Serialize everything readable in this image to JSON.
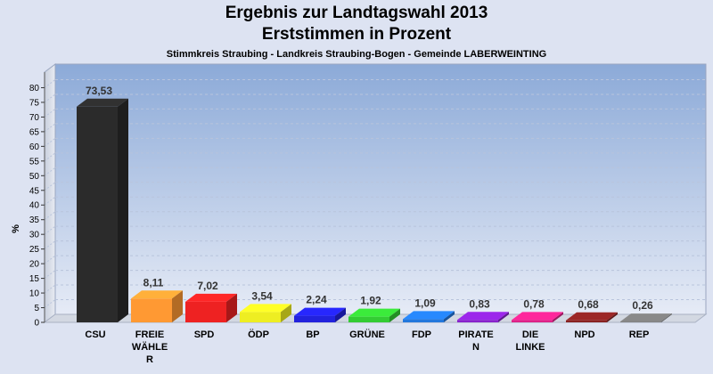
{
  "title": "Ergebnis zur Landtagswahl 2013",
  "title2": "Erststimmen in Prozent",
  "subtitle": "Stimmkreis Straubing - Landkreis Straubing-Bogen - Gemeinde LABERWEINTING",
  "chart_data": {
    "type": "bar",
    "title": "Ergebnis zur Landtagswahl 2013",
    "subtitle": "Erststimmen in Prozent",
    "ylabel": "%",
    "ylim": [
      0,
      85
    ],
    "yticks": [
      0,
      5,
      10,
      15,
      20,
      25,
      30,
      35,
      40,
      45,
      50,
      55,
      60,
      65,
      70,
      75,
      80
    ],
    "grid": true,
    "categories": [
      "CSU",
      "FREIE WÄHLER",
      "SPD",
      "ÖDP",
      "BP",
      "GRÜNE",
      "FDP",
      "PIRATEN",
      "DIE LINKE",
      "NPD",
      "REP"
    ],
    "category_labels": [
      [
        "CSU"
      ],
      [
        "FREIE",
        "WÄHLE",
        "R"
      ],
      [
        "SPD"
      ],
      [
        "ÖDP"
      ],
      [
        "BP"
      ],
      [
        "GRÜNE"
      ],
      [
        "FDP"
      ],
      [
        "PIRATE",
        "N"
      ],
      [
        "DIE",
        "LINKE"
      ],
      [
        "NPD"
      ],
      [
        "REP"
      ]
    ],
    "values": [
      73.53,
      8.11,
      7.02,
      3.54,
      2.24,
      1.92,
      1.09,
      0.83,
      0.78,
      0.68,
      0.26
    ],
    "value_labels": [
      "73,53",
      "8,11",
      "7,02",
      "3,54",
      "2,24",
      "1,92",
      "1,09",
      "0,83",
      "0,78",
      "0,68",
      "0,26"
    ],
    "colors": [
      "#2b2b2b",
      "#ff9933",
      "#ee2222",
      "#eeee22",
      "#2222dd",
      "#33cc33",
      "#2277dd",
      "#8822cc",
      "#dd2288",
      "#882222",
      "#777777"
    ]
  }
}
